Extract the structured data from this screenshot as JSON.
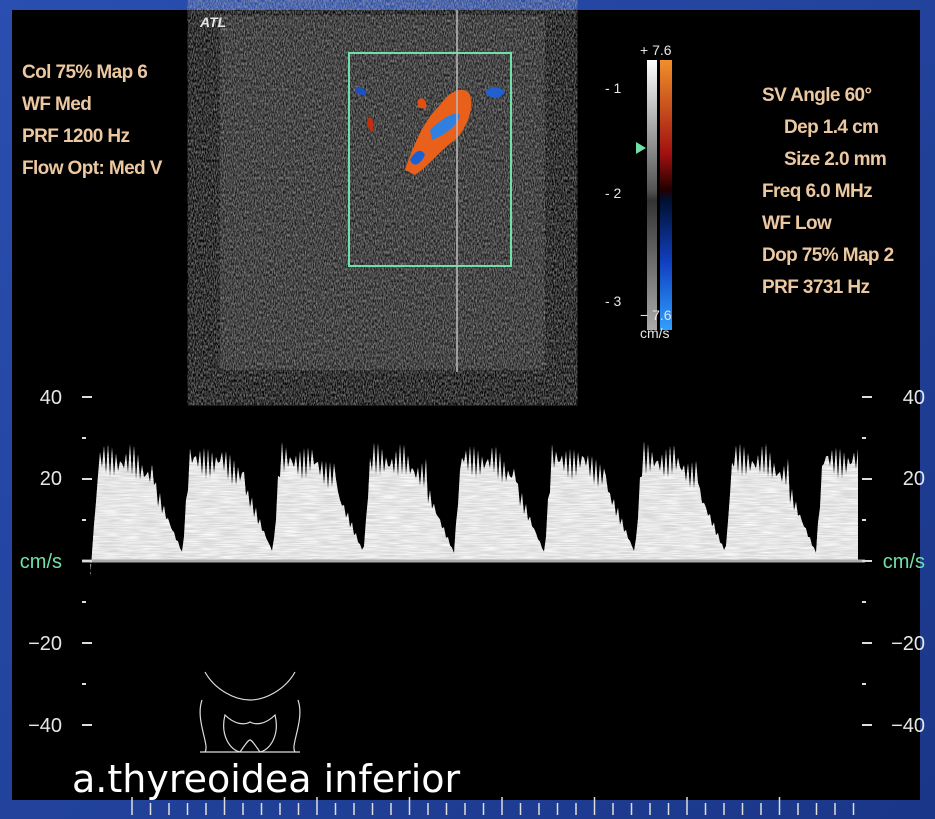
{
  "logo": "ATL",
  "color_settings": [
    "Col 75%  Map 6",
    "WF Med",
    "PRF 1200  Hz",
    "Flow Opt: Med V"
  ],
  "colorbar": {
    "top": "+ 7.6",
    "bottom": "− 7.6",
    "unit": "cm/s",
    "depth_labels": [
      "- 1",
      "- 2",
      "- 3"
    ]
  },
  "doppler_settings": [
    "SV Angle 60°",
    "Dep 1.4  cm",
    "Size 2.0  mm",
    "Freq 6.0  MHz",
    "WF Low",
    "Dop 75%  Map 2",
    "PRF 3731  Hz"
  ],
  "velocity_scale": [
    "40",
    "20",
    "cm/s",
    "−20",
    "−40"
  ],
  "caption": "a.thyreoidea inferior"
}
